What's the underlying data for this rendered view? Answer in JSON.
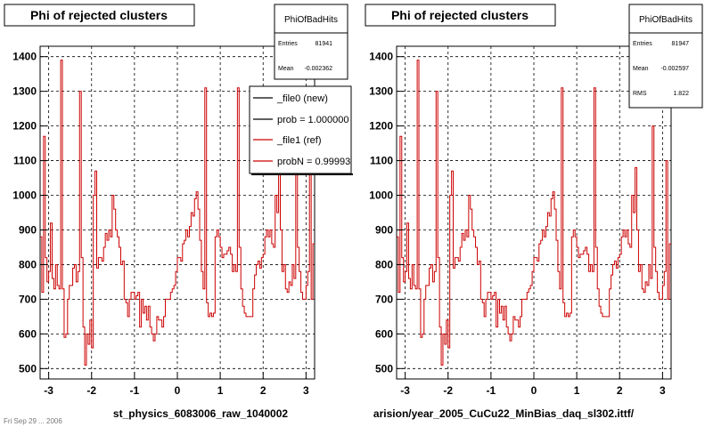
{
  "footer_text": "Fri Sep 29 ... 2006",
  "panels": [
    {
      "title": "Phi of rejected clusters",
      "xlabel": "st_physics_6083006_raw_1040002",
      "stats": {
        "name": "PhiOfBadHits",
        "rows": [
          {
            "label": "Entries",
            "value": "81941"
          },
          {
            "label": "Mean",
            "value": "-0.002362"
          }
        ]
      },
      "legend": {
        "entries": [
          {
            "label": "_file0 (new)",
            "color": "#000000"
          },
          {
            "label": "prob = 1.000000",
            "color": "#000000"
          },
          {
            "label": "_file1 (ref)",
            "color": "#cc0000"
          },
          {
            "label": "probN = 0.99993",
            "color": "#cc0000"
          }
        ]
      }
    },
    {
      "title": "Phi of rejected clusters",
      "xlabel": "arision/year_2005_CuCu22_MinBias_daq_sl302.ittf/",
      "stats": {
        "name": "PhiOfBadHits",
        "rows": [
          {
            "label": "Entries",
            "value": "81947"
          },
          {
            "label": "Mean",
            "value": "-0.002597"
          },
          {
            "label": "RMS",
            "value": "1.822"
          }
        ]
      },
      "legend": null
    }
  ],
  "chart_data": {
    "type": "histogram-step",
    "xlim": [
      -3.2,
      3.2
    ],
    "ylim": [
      470,
      1430
    ],
    "xticks": [
      -3,
      -2,
      -1,
      0,
      1,
      2,
      3
    ],
    "yticks": [
      500,
      600,
      700,
      800,
      900,
      1000,
      1100,
      1200,
      1300,
      1400
    ],
    "grid": true,
    "line_color": "#cc0000",
    "bins": [
      [
        -3.2,
        880
      ],
      [
        -3.16,
        720
      ],
      [
        -3.12,
        1170
      ],
      [
        -3.08,
        820
      ],
      [
        -3.04,
        750
      ],
      [
        -3.0,
        780
      ],
      [
        -2.96,
        920
      ],
      [
        -2.92,
        760
      ],
      [
        -2.88,
        730
      ],
      [
        -2.84,
        800
      ],
      [
        -2.8,
        740
      ],
      [
        -2.76,
        730
      ],
      [
        -2.72,
        1390
      ],
      [
        -2.68,
        730
      ],
      [
        -2.64,
        590
      ],
      [
        -2.6,
        600
      ],
      [
        -2.56,
        700
      ],
      [
        -2.52,
        740
      ],
      [
        -2.48,
        740
      ],
      [
        -2.44,
        790
      ],
      [
        -2.4,
        800
      ],
      [
        -2.36,
        750
      ],
      [
        -2.32,
        780
      ],
      [
        -2.28,
        1300
      ],
      [
        -2.24,
        820
      ],
      [
        -2.2,
        620
      ],
      [
        -2.16,
        510
      ],
      [
        -2.12,
        600
      ],
      [
        -2.08,
        570
      ],
      [
        -2.04,
        640
      ],
      [
        -2.0,
        560
      ],
      [
        -1.96,
        1000
      ],
      [
        -1.92,
        1070
      ],
      [
        -1.88,
        790
      ],
      [
        -1.84,
        820
      ],
      [
        -1.8,
        820
      ],
      [
        -1.76,
        810
      ],
      [
        -1.72,
        850
      ],
      [
        -1.68,
        890
      ],
      [
        -1.64,
        870
      ],
      [
        -1.6,
        900
      ],
      [
        -1.56,
        880
      ],
      [
        -1.52,
        1000
      ],
      [
        -1.48,
        960
      ],
      [
        -1.44,
        900
      ],
      [
        -1.4,
        880
      ],
      [
        -1.36,
        850
      ],
      [
        -1.32,
        800
      ],
      [
        -1.28,
        810
      ],
      [
        -1.24,
        700
      ],
      [
        -1.2,
        690
      ],
      [
        -1.16,
        650
      ],
      [
        -1.12,
        700
      ],
      [
        -1.08,
        720
      ],
      [
        -1.04,
        720
      ],
      [
        -1.0,
        700
      ],
      [
        -0.96,
        710
      ],
      [
        -0.92,
        720
      ],
      [
        -0.88,
        620
      ],
      [
        -0.84,
        700
      ],
      [
        -0.8,
        660
      ],
      [
        -0.76,
        680
      ],
      [
        -0.72,
        640
      ],
      [
        -0.68,
        680
      ],
      [
        -0.64,
        620
      ],
      [
        -0.6,
        600
      ],
      [
        -0.56,
        580
      ],
      [
        -0.52,
        600
      ],
      [
        -0.48,
        650
      ],
      [
        -0.44,
        640
      ],
      [
        -0.4,
        640
      ],
      [
        -0.36,
        620
      ],
      [
        -0.32,
        650
      ],
      [
        -0.28,
        700
      ],
      [
        -0.24,
        700
      ],
      [
        -0.2,
        700
      ],
      [
        -0.16,
        720
      ],
      [
        -0.12,
        730
      ],
      [
        -0.08,
        740
      ],
      [
        -0.04,
        780
      ],
      [
        0.0,
        820
      ],
      [
        0.04,
        820
      ],
      [
        0.08,
        810
      ],
      [
        0.12,
        860
      ],
      [
        0.16,
        870
      ],
      [
        0.2,
        900
      ],
      [
        0.24,
        880
      ],
      [
        0.28,
        910
      ],
      [
        0.32,
        950
      ],
      [
        0.36,
        940
      ],
      [
        0.4,
        990
      ],
      [
        0.44,
        1010
      ],
      [
        0.48,
        960
      ],
      [
        0.52,
        870
      ],
      [
        0.56,
        780
      ],
      [
        0.6,
        730
      ],
      [
        0.64,
        1310
      ],
      [
        0.68,
        690
      ],
      [
        0.72,
        650
      ],
      [
        0.76,
        660
      ],
      [
        0.8,
        650
      ],
      [
        0.84,
        660
      ],
      [
        0.88,
        880
      ],
      [
        0.92,
        900
      ],
      [
        0.96,
        880
      ],
      [
        1.0,
        850
      ],
      [
        1.04,
        820
      ],
      [
        1.08,
        830
      ],
      [
        1.12,
        830
      ],
      [
        1.16,
        840
      ],
      [
        1.2,
        850
      ],
      [
        1.24,
        830
      ],
      [
        1.28,
        780
      ],
      [
        1.32,
        800
      ],
      [
        1.36,
        780
      ],
      [
        1.4,
        1310
      ],
      [
        1.44,
        850
      ],
      [
        1.48,
        730
      ],
      [
        1.52,
        680
      ],
      [
        1.56,
        660
      ],
      [
        1.6,
        650
      ],
      [
        1.64,
        650
      ],
      [
        1.68,
        650
      ],
      [
        1.72,
        650
      ],
      [
        1.76,
        730
      ],
      [
        1.8,
        770
      ],
      [
        1.84,
        800
      ],
      [
        1.88,
        810
      ],
      [
        1.92,
        790
      ],
      [
        1.96,
        820
      ],
      [
        2.0,
        830
      ],
      [
        2.04,
        880
      ],
      [
        2.08,
        900
      ],
      [
        2.12,
        880
      ],
      [
        2.16,
        900
      ],
      [
        2.2,
        860
      ],
      [
        2.24,
        850
      ],
      [
        2.28,
        1000
      ],
      [
        2.32,
        950
      ],
      [
        2.36,
        1080
      ],
      [
        2.4,
        900
      ],
      [
        2.44,
        780
      ],
      [
        2.48,
        800
      ],
      [
        2.52,
        730
      ],
      [
        2.56,
        720
      ],
      [
        2.6,
        750
      ],
      [
        2.64,
        740
      ],
      [
        2.68,
        800
      ],
      [
        2.72,
        760
      ],
      [
        2.76,
        1200
      ],
      [
        2.8,
        850
      ],
      [
        2.84,
        780
      ],
      [
        2.88,
        720
      ],
      [
        2.92,
        700
      ],
      [
        2.96,
        700
      ],
      [
        3.0,
        740
      ],
      [
        3.04,
        780
      ],
      [
        3.08,
        1100
      ],
      [
        3.12,
        700
      ],
      [
        3.16,
        860
      ]
    ]
  }
}
